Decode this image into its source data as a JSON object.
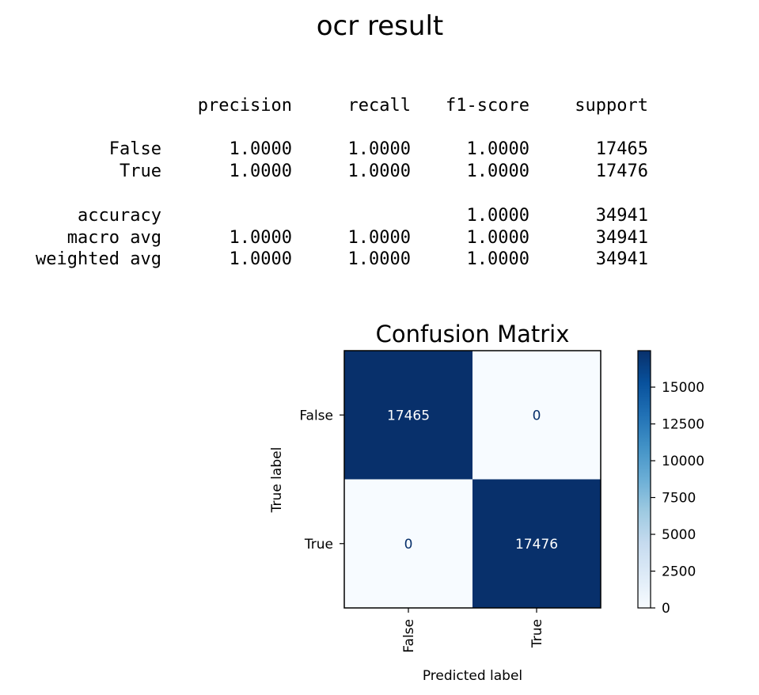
{
  "suptitle": "ocr result",
  "report": {
    "columns": [
      "precision",
      "recall",
      "f1-score",
      "support"
    ],
    "rows": [
      {
        "label": "False",
        "precision": "1.0000",
        "recall": "1.0000",
        "f1": "1.0000",
        "support": "17465"
      },
      {
        "label": "True",
        "precision": "1.0000",
        "recall": "1.0000",
        "f1": "1.0000",
        "support": "17476"
      },
      {
        "label": "accuracy",
        "precision": "",
        "recall": "",
        "f1": "1.0000",
        "support": "34941"
      },
      {
        "label": "macro avg",
        "precision": "1.0000",
        "recall": "1.0000",
        "f1": "1.0000",
        "support": "34941"
      },
      {
        "label": "weighted avg",
        "precision": "1.0000",
        "recall": "1.0000",
        "f1": "1.0000",
        "support": "34941"
      }
    ]
  },
  "chart_data": {
    "type": "heatmap",
    "title": "Confusion Matrix",
    "xlabel": "Predicted label",
    "ylabel": "True label",
    "x_categories": [
      "False",
      "True"
    ],
    "y_categories": [
      "False",
      "True"
    ],
    "values": [
      [
        17465,
        0
      ],
      [
        0,
        17476
      ]
    ],
    "colormap": "Blues",
    "colorbar": {
      "min": 0,
      "max": 17476,
      "ticks": [
        0,
        2500,
        5000,
        7500,
        10000,
        12500,
        15000
      ]
    },
    "colors": {
      "high": "#08306b",
      "low": "#f7fbff",
      "text_on_dark": "#ffffff",
      "text_on_light": "#08306b"
    }
  }
}
